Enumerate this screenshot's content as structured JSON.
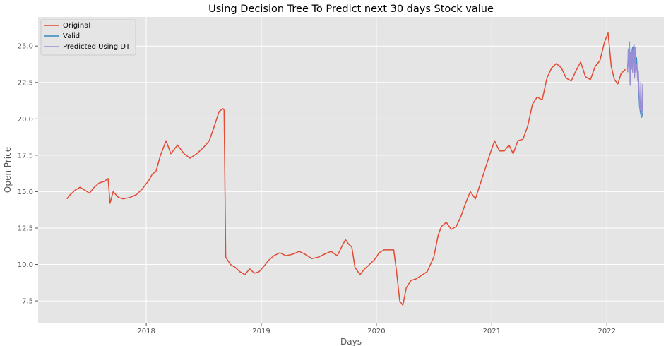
{
  "chart_data": {
    "type": "line",
    "title": "Using Decision Tree To Predict next 30 days Stock value",
    "xlabel": "Days",
    "ylabel": "Open Price",
    "x_type": "date",
    "xlim": [
      "2017-01-23",
      "2022-07-01"
    ],
    "ylim": [
      6.0,
      27.0
    ],
    "x_ticks": [
      "2018-01-01",
      "2019-01-01",
      "2020-01-01",
      "2021-01-01",
      "2022-01-01"
    ],
    "x_tick_labels": [
      "2018",
      "2019",
      "2020",
      "2021",
      "2022"
    ],
    "y_ticks": [
      7.5,
      10.0,
      12.5,
      15.0,
      17.5,
      20.0,
      22.5,
      25.0
    ],
    "y_tick_labels": [
      "7.5",
      "10.0",
      "12.5",
      "15.0",
      "17.5",
      "20.0",
      "22.5",
      "25.0"
    ],
    "grid": true,
    "legend_position": "top-left",
    "series": [
      {
        "name": "Original",
        "color": "#E24A33",
        "x": [
          "2017-04-24",
          "2017-05-05",
          "2017-05-20",
          "2017-06-05",
          "2017-06-20",
          "2017-07-05",
          "2017-07-20",
          "2017-08-05",
          "2017-08-20",
          "2017-09-02",
          "2017-09-08",
          "2017-09-18",
          "2017-10-05",
          "2017-10-20",
          "2017-11-10",
          "2017-12-01",
          "2017-12-20",
          "2018-01-10",
          "2018-01-20",
          "2018-02-01",
          "2018-02-15",
          "2018-03-05",
          "2018-03-20",
          "2018-04-10",
          "2018-05-01",
          "2018-05-20",
          "2018-06-10",
          "2018-06-30",
          "2018-07-20",
          "2018-08-05",
          "2018-08-20",
          "2018-09-01",
          "2018-09-05",
          "2018-09-10",
          "2018-09-25",
          "2018-10-10",
          "2018-10-25",
          "2018-11-10",
          "2018-11-25",
          "2018-12-10",
          "2018-12-25",
          "2019-01-10",
          "2019-01-25",
          "2019-02-10",
          "2019-03-01",
          "2019-03-20",
          "2019-04-10",
          "2019-05-01",
          "2019-05-20",
          "2019-06-10",
          "2019-07-01",
          "2019-07-20",
          "2019-08-10",
          "2019-08-30",
          "2019-09-15",
          "2019-09-25",
          "2019-10-05",
          "2019-10-15",
          "2019-10-25",
          "2019-11-10",
          "2019-11-25",
          "2019-12-10",
          "2019-12-25",
          "2020-01-10",
          "2020-01-25",
          "2020-02-10",
          "2020-02-25",
          "2020-03-05",
          "2020-03-15",
          "2020-03-25",
          "2020-04-05",
          "2020-04-20",
          "2020-05-05",
          "2020-05-20",
          "2020-06-10",
          "2020-07-01",
          "2020-07-15",
          "2020-07-25",
          "2020-08-10",
          "2020-08-25",
          "2020-09-10",
          "2020-09-25",
          "2020-10-10",
          "2020-10-25",
          "2020-11-10",
          "2020-11-25",
          "2020-12-10",
          "2020-12-25",
          "2021-01-10",
          "2021-01-25",
          "2021-02-10",
          "2021-02-25",
          "2021-03-10",
          "2021-03-25",
          "2021-04-10",
          "2021-04-25",
          "2021-05-10",
          "2021-05-25",
          "2021-06-10",
          "2021-06-25",
          "2021-07-10",
          "2021-07-25",
          "2021-08-10",
          "2021-08-25",
          "2021-09-10",
          "2021-09-25",
          "2021-10-10",
          "2021-10-25",
          "2021-11-10",
          "2021-11-25",
          "2021-12-10",
          "2021-12-25",
          "2022-01-05",
          "2022-01-15",
          "2022-01-25",
          "2022-02-05",
          "2022-02-15",
          "2022-03-01"
        ],
        "y": [
          14.5,
          14.8,
          15.1,
          15.3,
          15.1,
          14.9,
          15.3,
          15.6,
          15.7,
          15.9,
          14.2,
          15.0,
          14.6,
          14.5,
          14.6,
          14.8,
          15.2,
          15.8,
          16.2,
          16.4,
          17.5,
          18.5,
          17.6,
          18.2,
          17.6,
          17.3,
          17.6,
          18.0,
          18.5,
          19.5,
          20.5,
          20.7,
          20.6,
          10.5,
          10.0,
          9.8,
          9.5,
          9.3,
          9.7,
          9.4,
          9.5,
          9.9,
          10.3,
          10.6,
          10.8,
          10.6,
          10.7,
          10.9,
          10.7,
          10.4,
          10.5,
          10.7,
          10.9,
          10.6,
          11.3,
          11.7,
          11.4,
          11.2,
          9.8,
          9.3,
          9.7,
          10.0,
          10.3,
          10.8,
          11.0,
          11.0,
          11.0,
          9.5,
          7.5,
          7.2,
          8.4,
          8.9,
          9.0,
          9.2,
          9.5,
          10.5,
          12.0,
          12.6,
          12.9,
          12.4,
          12.6,
          13.3,
          14.2,
          15.0,
          14.5,
          15.5,
          16.5,
          17.5,
          18.5,
          17.8,
          17.8,
          18.2,
          17.6,
          18.5,
          18.6,
          19.5,
          21.0,
          21.5,
          21.3,
          22.8,
          23.5,
          23.8,
          23.5,
          22.8,
          22.6,
          23.3,
          23.9,
          22.9,
          22.7,
          23.6,
          24.0,
          25.3,
          25.9,
          23.6,
          22.7,
          22.4,
          23.1,
          23.4
        ]
      },
      {
        "name": "Valid",
        "color": "#348ABD",
        "x": [
          "2022-03-08",
          "2022-03-10",
          "2022-03-14",
          "2022-03-16",
          "2022-03-18",
          "2022-03-22",
          "2022-03-24",
          "2022-03-28",
          "2022-03-30",
          "2022-04-01",
          "2022-04-05",
          "2022-04-07",
          "2022-04-11",
          "2022-04-13",
          "2022-04-15",
          "2022-04-19",
          "2022-04-21",
          "2022-04-25"
        ],
        "y": [
          23.5,
          24.2,
          23.8,
          24.4,
          24.6,
          24.1,
          24.9,
          25.0,
          24.6,
          23.8,
          24.2,
          23.4,
          22.8,
          21.6,
          20.8,
          20.3,
          20.1,
          20.4
        ]
      },
      {
        "name": "Predicted Using DT",
        "color": "#988ED5",
        "x": [
          "2022-03-08",
          "2022-03-10",
          "2022-03-12",
          "2022-03-14",
          "2022-03-16",
          "2022-03-18",
          "2022-03-20",
          "2022-03-22",
          "2022-03-24",
          "2022-03-26",
          "2022-03-28",
          "2022-03-30",
          "2022-04-01",
          "2022-04-03",
          "2022-04-05",
          "2022-04-07",
          "2022-04-09",
          "2022-04-11",
          "2022-04-13",
          "2022-04-15",
          "2022-04-17",
          "2022-04-19",
          "2022-04-21",
          "2022-04-23",
          "2022-04-25"
        ],
        "y": [
          23.2,
          24.8,
          23.6,
          25.3,
          22.3,
          24.6,
          23.4,
          24.8,
          23.2,
          24.6,
          25.1,
          22.8,
          24.9,
          23.2,
          23.8,
          23.4,
          22.6,
          23.3,
          22.1,
          21.0,
          20.6,
          22.5,
          20.2,
          20.5,
          22.4
        ]
      }
    ]
  }
}
